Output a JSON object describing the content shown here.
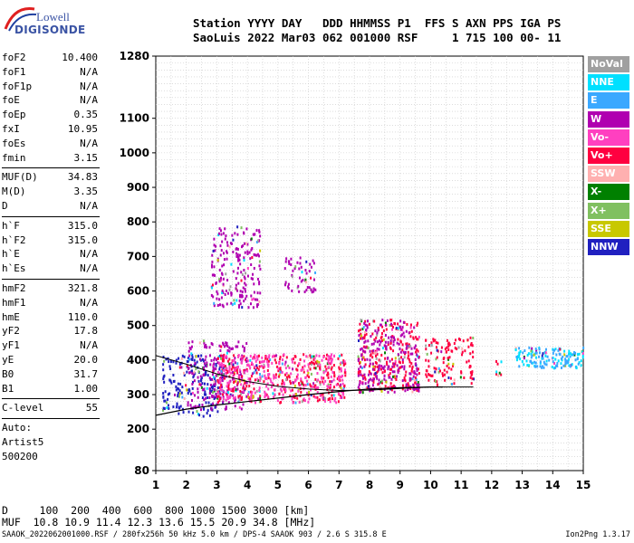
{
  "logo": {
    "line1": "Lowell",
    "line2": "DIGISONDE"
  },
  "header": {
    "line1": "Station YYYY DAY   DDD HHMMSS P1  FFS S AXN PPS IGA PS",
    "line2": "SaoLuis 2022 Mar03 062 001000 RSF     1 715 100 00- 11"
  },
  "params": [
    {
      "k": "foF2",
      "v": "10.400"
    },
    {
      "k": "foF1",
      "v": "N/A"
    },
    {
      "k": "foF1p",
      "v": "N/A"
    },
    {
      "k": "foE",
      "v": "N/A"
    },
    {
      "k": "foEp",
      "v": "0.35"
    },
    {
      "k": "fxI",
      "v": "10.95"
    },
    {
      "k": "foEs",
      "v": "N/A"
    },
    {
      "k": "fmin",
      "v": "3.15"
    },
    {
      "divider": true
    },
    {
      "k": "MUF(D)",
      "v": "34.83"
    },
    {
      "k": "M(D)",
      "v": "3.35"
    },
    {
      "k": "D",
      "v": "N/A"
    },
    {
      "divider": true
    },
    {
      "k": "h`F",
      "v": "315.0"
    },
    {
      "k": "h`F2",
      "v": "315.0"
    },
    {
      "k": "h`E",
      "v": "N/A"
    },
    {
      "k": "h`Es",
      "v": "N/A"
    },
    {
      "divider": true
    },
    {
      "k": "hmF2",
      "v": "321.8"
    },
    {
      "k": "hmF1",
      "v": "N/A"
    },
    {
      "k": "hmE",
      "v": "110.0"
    },
    {
      "k": "yF2",
      "v": "17.8"
    },
    {
      "k": "yF1",
      "v": "N/A"
    },
    {
      "k": "yE",
      "v": "20.0"
    },
    {
      "k": "B0",
      "v": "31.7"
    },
    {
      "k": "B1",
      "v": "1.00"
    },
    {
      "divider": true
    },
    {
      "k": "C-level",
      "v": "55"
    },
    {
      "divider": true
    },
    {
      "text": "Auto:"
    },
    {
      "text": "Artist5"
    },
    {
      "text": "500200"
    }
  ],
  "legend": [
    {
      "label": "NoVal",
      "color": "#a0a0a0"
    },
    {
      "label": "NNE",
      "color": "#00e0ff"
    },
    {
      "label": "E",
      "color": "#3aa8ff"
    },
    {
      "label": "W",
      "color": "#b000b0"
    },
    {
      "label": "Vo-",
      "color": "#ff40c0"
    },
    {
      "label": "Vo+",
      "color": "#ff0040"
    },
    {
      "label": "SSW",
      "color": "#ffb0b0"
    },
    {
      "label": "X-",
      "color": "#008000"
    },
    {
      "label": "X+",
      "color": "#80c060"
    },
    {
      "label": "SSE",
      "color": "#c8c800"
    },
    {
      "label": "NNW",
      "color": "#2020c0"
    }
  ],
  "chart_data": {
    "type": "scatter",
    "title": "",
    "xlabel": "",
    "ylabel": "",
    "xlim": [
      1,
      15
    ],
    "ylim": [
      80,
      1280
    ],
    "x_ticks": [
      1,
      2,
      3,
      4,
      5,
      6,
      7,
      8,
      9,
      10,
      11,
      12,
      13,
      14,
      15
    ],
    "y_ticks": [
      80,
      200,
      300,
      400,
      500,
      600,
      700,
      800,
      900,
      1000,
      1100,
      1280
    ],
    "grid": true,
    "legend_position": "right",
    "clusters": [
      {
        "name": "E",
        "x": [
          1.2,
          3.2
        ],
        "h": [
          240,
          420
        ],
        "color": "#2020c0"
      },
      {
        "name": "E",
        "x": [
          2.0,
          4.0
        ],
        "h": [
          260,
          460
        ],
        "color": "#b000b0"
      },
      {
        "name": "E",
        "x": [
          3.0,
          7.2
        ],
        "h": [
          280,
          420
        ],
        "color": "#ff0040"
      },
      {
        "name": "E",
        "x": [
          3.0,
          7.2
        ],
        "h": [
          280,
          420
        ],
        "color": "#ff40c0"
      },
      {
        "name": "E",
        "x": [
          2.8,
          4.4
        ],
        "h": [
          550,
          790
        ],
        "color": "#b000b0"
      },
      {
        "name": "E",
        "x": [
          5.2,
          6.2
        ],
        "h": [
          600,
          700
        ],
        "color": "#b000b0"
      },
      {
        "name": "E",
        "x": [
          7.6,
          9.6
        ],
        "h": [
          310,
          520
        ],
        "color": "#ff0040"
      },
      {
        "name": "E",
        "x": [
          7.6,
          9.6
        ],
        "h": [
          310,
          520
        ],
        "color": "#b000b0"
      },
      {
        "name": "E",
        "x": [
          9.8,
          11.4
        ],
        "h": [
          330,
          470
        ],
        "color": "#ff0040"
      },
      {
        "name": "E",
        "x": [
          12.1,
          12.3
        ],
        "h": [
          340,
          410
        ],
        "color": "#ff0040"
      },
      {
        "name": "E",
        "x": [
          12.7,
          15.0
        ],
        "h": [
          380,
          440
        ],
        "color": "#00e0ff"
      },
      {
        "name": "E",
        "x": [
          12.7,
          15.0
        ],
        "h": [
          380,
          440
        ],
        "color": "#3aa8ff"
      }
    ],
    "profile_trace": {
      "f": [
        1.0,
        2.0,
        3.0,
        4.0,
        5.0,
        6.0,
        7.0,
        8.0,
        9.0,
        10.0,
        10.4
      ],
      "h": [
        240,
        258,
        270,
        280,
        290,
        300,
        309,
        316,
        320,
        322,
        322
      ]
    },
    "fitted_trace": {
      "f": [
        1.0,
        2.0,
        3.0,
        4.0,
        5.0,
        6.0,
        7.0,
        8.0,
        9.0,
        10.0,
        11.0,
        11.4
      ],
      "h": [
        413,
        388,
        360,
        338,
        324,
        316,
        312,
        313,
        318,
        322,
        322,
        322
      ]
    }
  },
  "muf": {
    "line1": "D     100  200  400  600  800 1000 1500 3000 [km]",
    "line2": "MUF  10.8 10.9 11.4 12.3 13.6 15.5 20.9 34.8 [MHz]"
  },
  "footer": {
    "left": "SAAOK_2022062001000.RSF / 280fx256h 50 kHz 5.0 km / DPS-4 SAAOK 903 / 2.6 S 315.8 E",
    "right": "Ion2Png 1.3.17"
  }
}
